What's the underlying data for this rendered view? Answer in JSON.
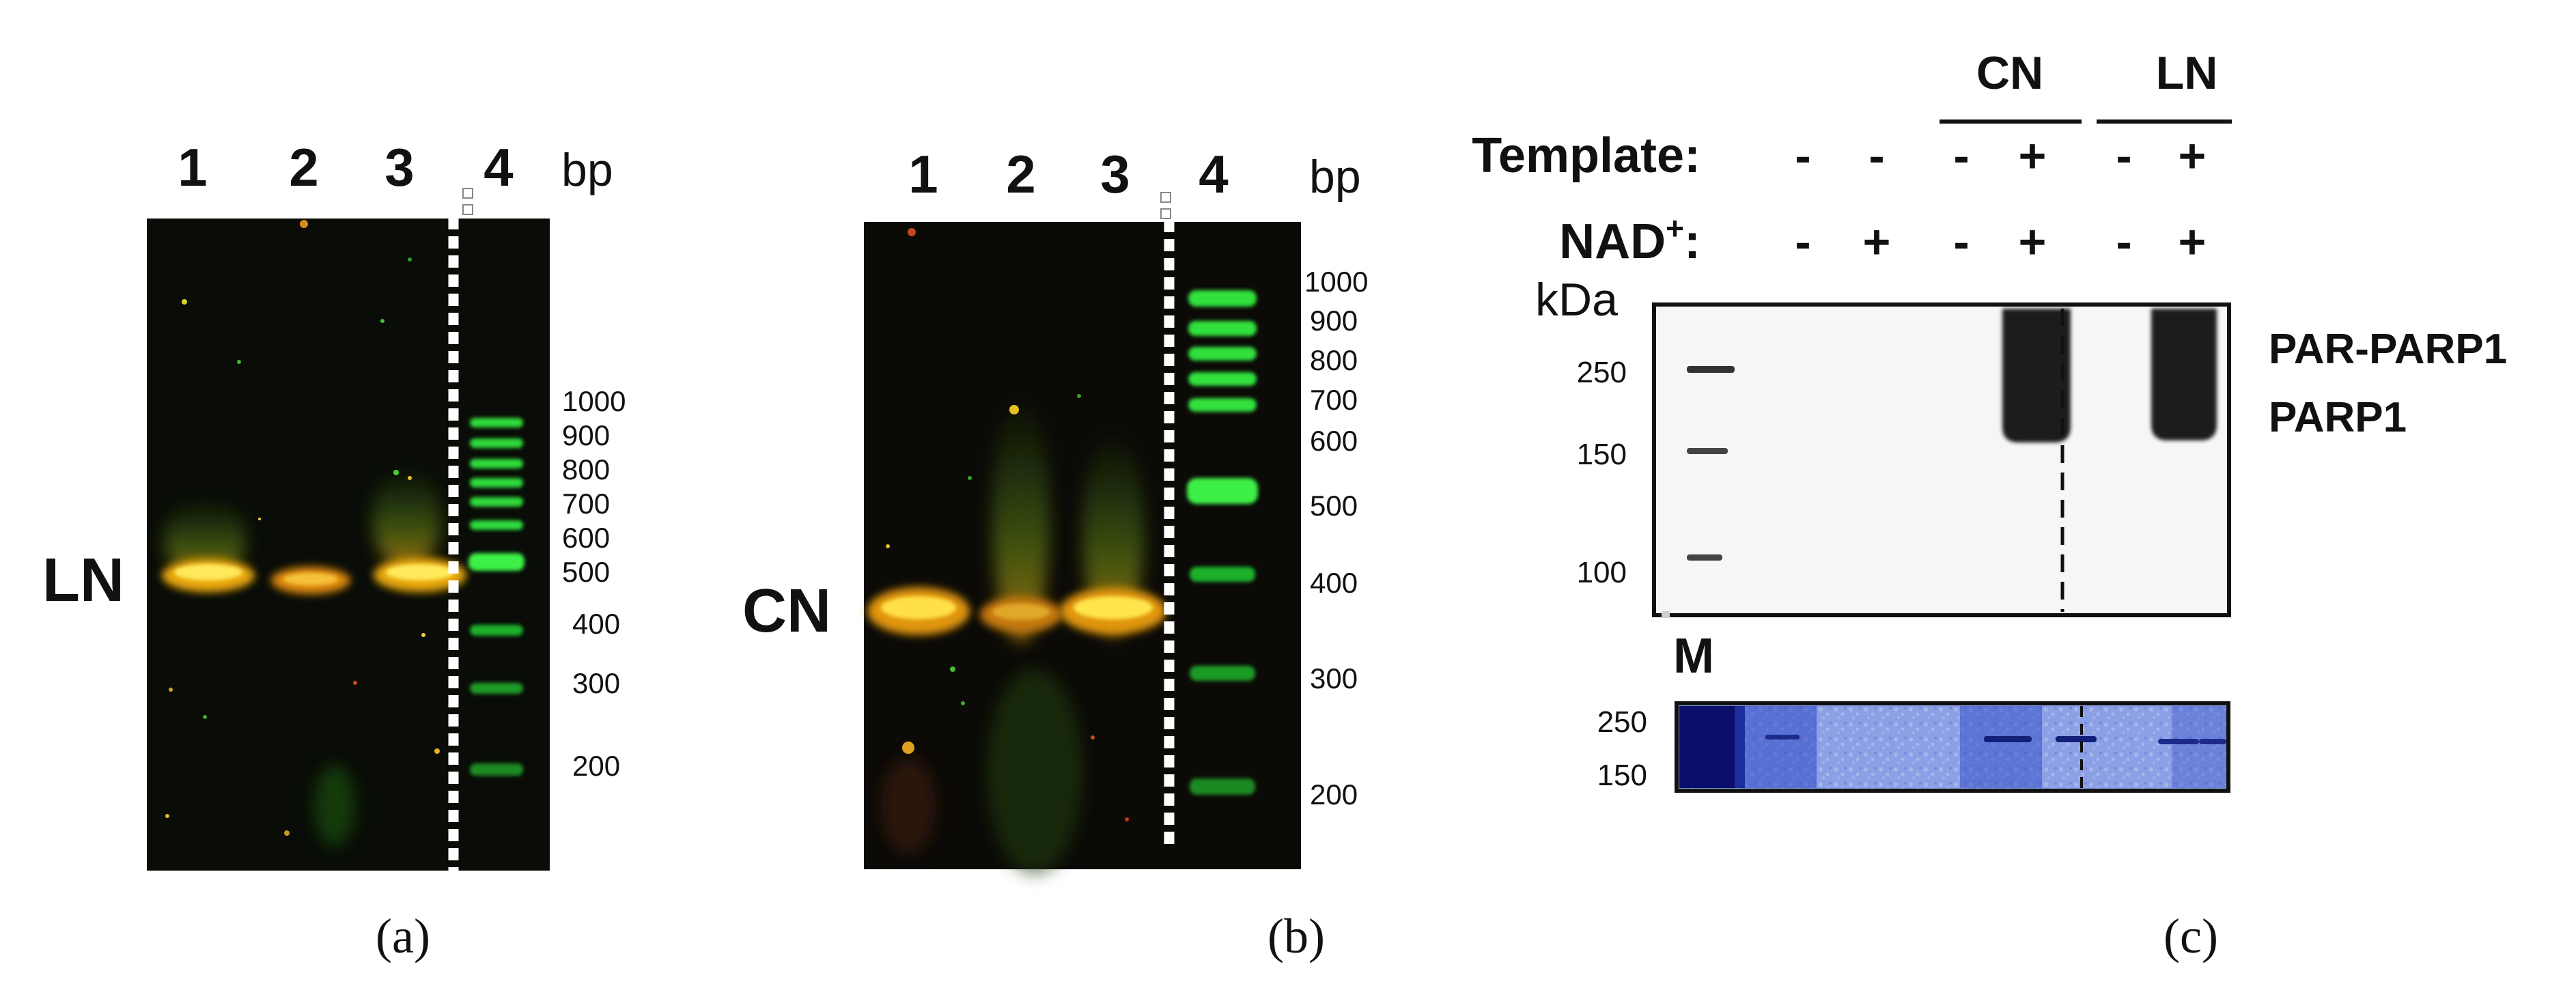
{
  "panel_a": {
    "lane_numbers": [
      "1",
      "2",
      "3",
      "4"
    ],
    "unit": "bp",
    "side_label": "LN",
    "ladder_labels": [
      "1000",
      "900",
      "800",
      "700",
      "600",
      "500",
      "400",
      "300",
      "200"
    ],
    "caption": "(a)",
    "ladder_color": "#2fd83a",
    "sample_band_color": "#f2c20c"
  },
  "panel_b": {
    "lane_numbers": [
      "1",
      "2",
      "3",
      "4"
    ],
    "unit": "bp",
    "side_label": "CN",
    "ladder_labels": [
      "1000",
      "900",
      "800",
      "700",
      "600",
      "500",
      "400",
      "300",
      "200"
    ],
    "caption": "(b)",
    "ladder_color": "#2fd83a",
    "sample_band_color": "#f2c20c"
  },
  "panel_c": {
    "group_labels": [
      "CN",
      "LN"
    ],
    "template_label": "Template:",
    "template_values": [
      "-",
      "-",
      "-",
      "+",
      "-",
      "+"
    ],
    "nad_label": "NAD",
    "nad_superscript": "+",
    "nad_colon": ":",
    "nad_values": [
      "-",
      "+",
      "-",
      "+",
      "-",
      "+"
    ],
    "kda_label": "kDa",
    "blot_markers": [
      "250",
      "150",
      "100"
    ],
    "band_labels": [
      "PAR-PARP1",
      "PARP1"
    ],
    "marker_lane_label": "M",
    "stain_markers": [
      "250",
      "150"
    ],
    "caption": "(c)",
    "stain_color": "#3e5ed8"
  }
}
